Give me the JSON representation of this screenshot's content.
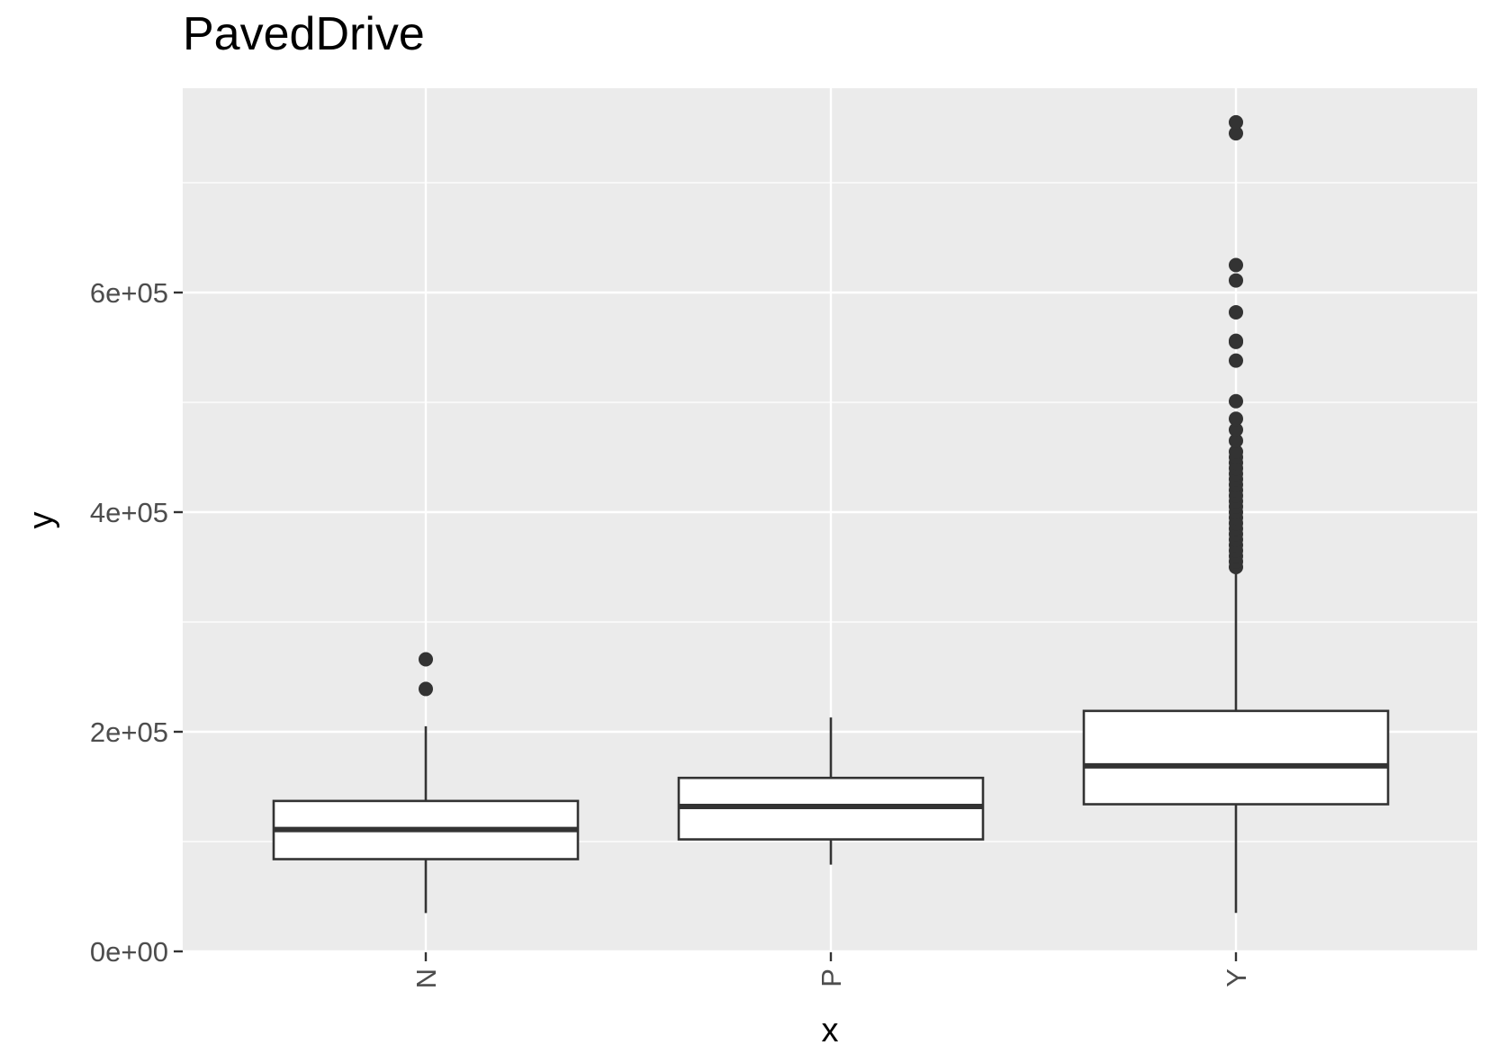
{
  "chart_data": {
    "type": "boxplot",
    "title": "PavedDrive",
    "xlabel": "x",
    "ylabel": "y",
    "categories": [
      "N",
      "P",
      "Y"
    ],
    "ylim": [
      0,
      780000
    ],
    "yticks": [
      0,
      200000,
      400000,
      600000
    ],
    "ytick_labels": [
      "0e+00",
      "2e+05",
      "4e+05",
      "6e+05"
    ],
    "grid": true,
    "boxes": [
      {
        "category": "N",
        "whisker_low": 34900,
        "q1": 84000,
        "median": 111000,
        "q3": 137000,
        "whisker_high": 205000,
        "outliers": [
          239000,
          266000
        ]
      },
      {
        "category": "P",
        "whisker_low": 79000,
        "q1": 102000,
        "median": 132000,
        "q3": 158000,
        "whisker_high": 213000,
        "outliers": []
      },
      {
        "category": "Y",
        "whisker_low": 35000,
        "q1": 134000,
        "median": 169000,
        "q3": 219000,
        "whisker_high": 345000,
        "outliers": [
          350000,
          355000,
          360000,
          365000,
          370000,
          375000,
          380000,
          385000,
          390000,
          395000,
          400000,
          405000,
          410000,
          415000,
          420000,
          425000,
          430000,
          435000,
          440000,
          445000,
          450000,
          455000,
          465000,
          475000,
          485000,
          501000,
          538000,
          555000,
          556000,
          582000,
          611000,
          625000,
          745000,
          755000
        ]
      }
    ],
    "colors": {
      "panel": "#ebebeb",
      "grid_major": "#ffffff",
      "box_stroke": "#333333",
      "box_fill": "#ffffff",
      "point": "#333333"
    }
  }
}
